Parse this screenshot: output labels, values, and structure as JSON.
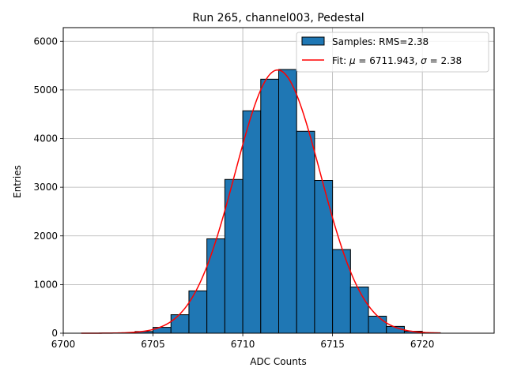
{
  "chart_data": {
    "type": "bar",
    "title": "Run 265, channel003, Pedestal",
    "xlabel": "ADC Counts",
    "ylabel": "Entries",
    "xlim": [
      6700,
      6724
    ],
    "ylim": [
      0,
      6280
    ],
    "xticks": [
      6700,
      6705,
      6710,
      6715,
      6720
    ],
    "yticks": [
      0,
      1000,
      2000,
      3000,
      4000,
      5000,
      6000
    ],
    "grid": true,
    "legend_position": "top-right",
    "bar_color": "#1f77b4",
    "fit_color": "#ff0000",
    "histogram": {
      "name": "Samples: RMS=2.38",
      "bin_edges": [
        6701,
        6702,
        6703,
        6704,
        6705,
        6706,
        6707,
        6708,
        6709,
        6710,
        6711,
        6712,
        6713,
        6714,
        6715,
        6716,
        6717,
        6718,
        6719,
        6720,
        6721
      ],
      "counts": [
        0,
        2,
        8,
        35,
        120,
        380,
        870,
        1940,
        3160,
        4570,
        5220,
        5420,
        4150,
        3140,
        1720,
        950,
        350,
        140,
        40,
        10
      ]
    },
    "fit": {
      "name_prefix": "Fit: ",
      "mu_symbol": "μ",
      "mu_text": " = 6711.943, ",
      "sigma_symbol": "σ",
      "sigma_text": " = 2.38",
      "mu": 6711.943,
      "sigma": 2.38,
      "amplitude": 5410,
      "x_range": [
        6701,
        6721
      ]
    }
  }
}
